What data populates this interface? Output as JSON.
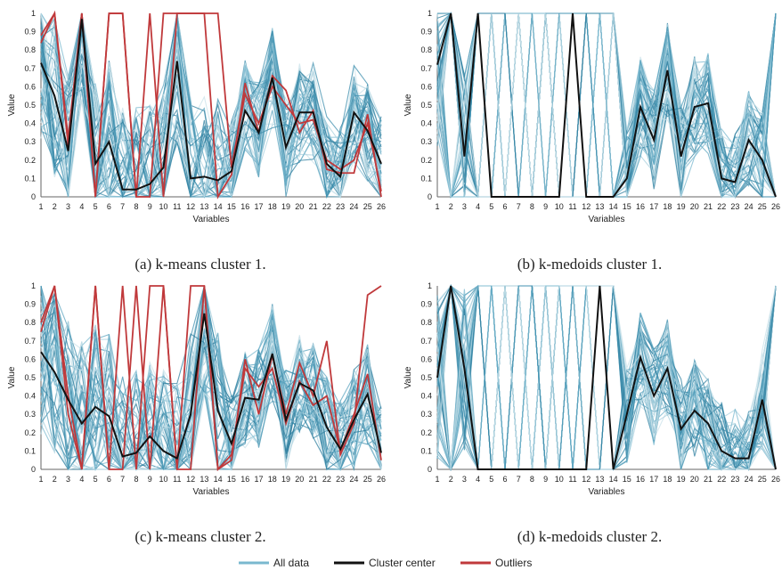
{
  "legend": [
    {
      "label": "All data",
      "color": "#7ab8cf"
    },
    {
      "label": "Cluster center",
      "color": "#111111"
    },
    {
      "label": "Outliers",
      "color": "#c0393b"
    }
  ],
  "chart_data": [
    {
      "type": "line",
      "caption": "(a) k-means cluster 1.",
      "xlabel": "Variables",
      "ylabel": "Value",
      "x": [
        1,
        2,
        3,
        4,
        5,
        6,
        7,
        8,
        9,
        10,
        11,
        12,
        13,
        14,
        15,
        16,
        17,
        18,
        19,
        20,
        21,
        22,
        23,
        24,
        25,
        26
      ],
      "ylim": [
        0,
        1
      ],
      "yticks": [
        "0",
        "0.1",
        "0.2",
        "0.3",
        "0.4",
        "0.5",
        "0.6",
        "0.7",
        "0.8",
        "0.9",
        "1"
      ],
      "series": [
        {
          "name": "Cluster center",
          "role": "center",
          "color": "#111111",
          "values": [
            0.73,
            0.55,
            0.25,
            0.97,
            0.18,
            0.3,
            0.04,
            0.04,
            0.07,
            0.16,
            0.74,
            0.1,
            0.11,
            0.09,
            0.14,
            0.47,
            0.35,
            0.65,
            0.27,
            0.46,
            0.46,
            0.18,
            0.11,
            0.46,
            0.36,
            0.18
          ]
        },
        {
          "name": "Outliers",
          "role": "outliers",
          "color": "#c0393b",
          "values": [
            0.88,
            1,
            0.28,
            1,
            0,
            1,
            1,
            0,
            1,
            0,
            1,
            1,
            1,
            0,
            0.12,
            0.62,
            0.35,
            0.66,
            0.58,
            0.35,
            0.47,
            0.15,
            0.13,
            0.13,
            0.45,
            0
          ]
        },
        {
          "name": "Outliers",
          "role": "outliers",
          "color": "#c0393b",
          "values": [
            0.84,
            1,
            0.32,
            1,
            0,
            1,
            1,
            0,
            0,
            1,
            1,
            1,
            1,
            1,
            0.16,
            0.56,
            0.4,
            0.6,
            0.5,
            0.4,
            0.42,
            0.2,
            0.15,
            0.2,
            0.4,
            0.03
          ]
        }
      ]
    },
    {
      "type": "line",
      "caption": "(b) k-medoids cluster 1.",
      "xlabel": "Variables",
      "ylabel": "Value",
      "x": [
        1,
        2,
        3,
        4,
        5,
        6,
        7,
        8,
        9,
        10,
        11,
        12,
        13,
        14,
        15,
        16,
        17,
        18,
        19,
        20,
        21,
        22,
        23,
        24,
        25,
        26
      ],
      "ylim": [
        0,
        1
      ],
      "yticks": [
        "0",
        "0.1",
        "0.2",
        "0.3",
        "0.4",
        "0.5",
        "0.6",
        "0.7",
        "0.8",
        "0.9",
        "1"
      ],
      "series": [
        {
          "name": "Cluster center",
          "role": "center",
          "color": "#111111",
          "values": [
            0.72,
            1,
            0.22,
            1,
            0,
            0,
            0,
            0,
            0,
            0,
            1,
            0,
            0,
            0,
            0.1,
            0.49,
            0.31,
            0.69,
            0.22,
            0.49,
            0.51,
            0.1,
            0.08,
            0.31,
            0.2,
            0
          ]
        }
      ]
    },
    {
      "type": "line",
      "caption": "(c) k-means cluster 2.",
      "xlabel": "Variables",
      "ylabel": "Value",
      "x": [
        1,
        2,
        3,
        4,
        5,
        6,
        7,
        8,
        9,
        10,
        11,
        12,
        13,
        14,
        15,
        16,
        17,
        18,
        19,
        20,
        21,
        22,
        23,
        24,
        25,
        26
      ],
      "ylim": [
        0,
        1
      ],
      "yticks": [
        "0",
        "0.1",
        "0.2",
        "0.3",
        "0.4",
        "0.5",
        "0.6",
        "0.7",
        "0.8",
        "0.9",
        "1"
      ],
      "series": [
        {
          "name": "Cluster center",
          "role": "center",
          "color": "#111111",
          "values": [
            0.64,
            0.53,
            0.38,
            0.25,
            0.34,
            0.29,
            0.07,
            0.09,
            0.18,
            0.1,
            0.06,
            0.3,
            0.85,
            0.32,
            0.14,
            0.39,
            0.38,
            0.63,
            0.27,
            0.47,
            0.43,
            0.23,
            0.11,
            0.27,
            0.41,
            0.09
          ]
        },
        {
          "name": "Outliers",
          "role": "outliers",
          "color": "#c0393b",
          "values": [
            0.8,
            1,
            0.3,
            0,
            1,
            0,
            0,
            1,
            0,
            1,
            0,
            1,
            1,
            0,
            0.05,
            0.6,
            0.3,
            0.62,
            0.3,
            0.58,
            0.4,
            0.7,
            0.08,
            0.25,
            0.95,
            1
          ]
        },
        {
          "name": "Outliers",
          "role": "outliers",
          "color": "#c0393b",
          "values": [
            0.75,
            1,
            0.4,
            0,
            1,
            0,
            1,
            0,
            1,
            1,
            0,
            0,
            1,
            0,
            0.08,
            0.55,
            0.45,
            0.55,
            0.25,
            0.48,
            0.35,
            0.4,
            0.1,
            0.3,
            0.52,
            0.05
          ]
        }
      ]
    },
    {
      "type": "line",
      "caption": "(d) k-medoids cluster 2.",
      "xlabel": "Variables",
      "ylabel": "Value",
      "x": [
        1,
        2,
        3,
        4,
        5,
        6,
        7,
        8,
        9,
        10,
        11,
        12,
        13,
        14,
        15,
        16,
        17,
        18,
        19,
        20,
        21,
        22,
        23,
        24,
        25,
        26
      ],
      "ylim": [
        0,
        1
      ],
      "yticks": [
        "0",
        "0.1",
        "0.2",
        "0.3",
        "0.4",
        "0.5",
        "0.6",
        "0.7",
        "0.8",
        "0.9",
        "1"
      ],
      "series": [
        {
          "name": "Cluster center",
          "role": "center",
          "color": "#111111",
          "values": [
            0.5,
            1,
            0.55,
            0,
            0,
            0,
            0,
            0,
            0,
            0,
            0,
            0,
            1,
            0,
            0.3,
            0.61,
            0.4,
            0.55,
            0.22,
            0.32,
            0.25,
            0.1,
            0.06,
            0.06,
            0.38,
            0
          ]
        }
      ]
    }
  ]
}
